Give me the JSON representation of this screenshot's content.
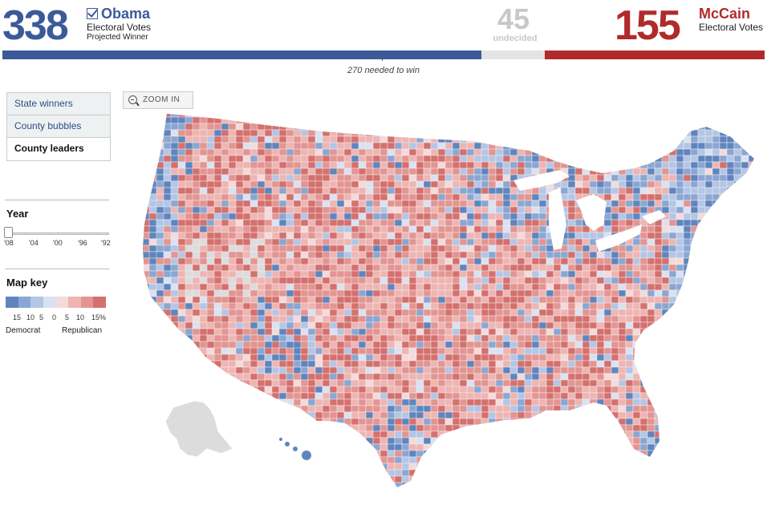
{
  "header": {
    "dem_votes": "338",
    "dem_name": "Obama",
    "dem_sub": "Electoral Votes",
    "dem_sub2": "Projected Winner",
    "undecided_votes": "45",
    "undecided_label": "undecided",
    "rep_votes": "155",
    "rep_name": "McCain",
    "rep_sub": "Electoral Votes",
    "win_label": "270 needed to win",
    "bar": {
      "dem_ev": 338,
      "undecided_ev": 45,
      "rep_ev": 155,
      "dem_color": "#3c5a9a",
      "undecided_color": "#e4e4e4",
      "rep_color": "#b12a2b"
    }
  },
  "views": {
    "state_winners": "State winners",
    "county_bubbles": "County bubbles",
    "county_leaders": "County leaders",
    "active": "county_leaders"
  },
  "year": {
    "title": "Year",
    "ticks": [
      "'08",
      "'04",
      "'00",
      "'96",
      "'92"
    ],
    "selected": "'08"
  },
  "map_key": {
    "title": "Map key",
    "colors": [
      "#5f85bf",
      "#8aa7d3",
      "#b3c6e6",
      "#d9e2f2",
      "#f5dada",
      "#eeb5b3",
      "#e39592",
      "#d4706d"
    ],
    "labels": [
      "15",
      "10",
      "5",
      "0",
      "5",
      "10",
      "15%"
    ],
    "dem_label": "Democrat",
    "rep_label": "Republican"
  },
  "map": {
    "zoom_label": "ZOOM IN",
    "no_data_color": "#dcdcdc",
    "state_border_color": "#ffffff"
  }
}
